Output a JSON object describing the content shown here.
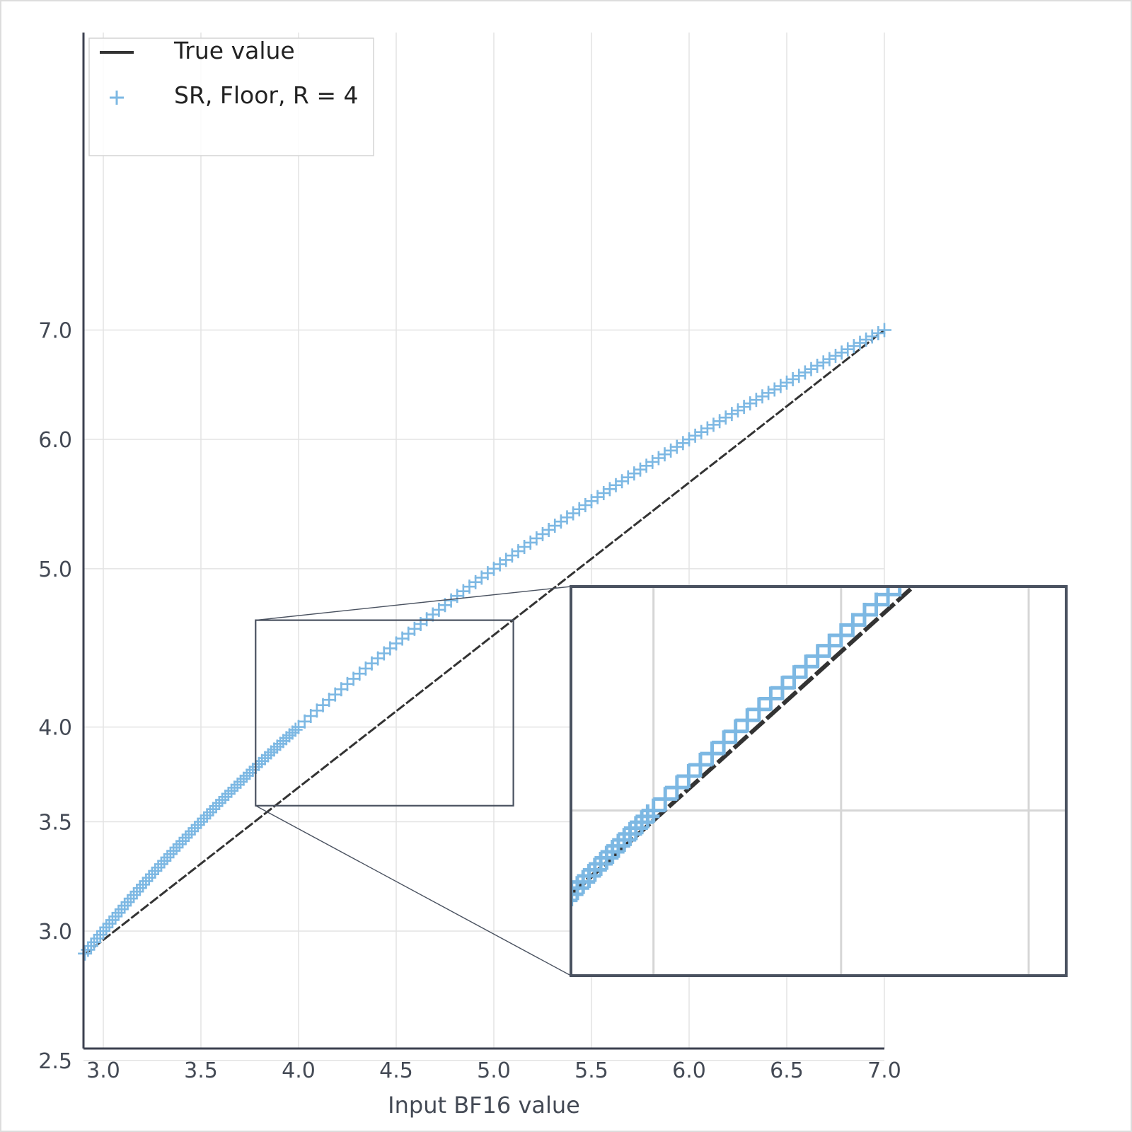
{
  "chart_data": {
    "type": "scatter",
    "title": "",
    "xlabel": "Input BF16 value",
    "ylabel": "",
    "xlim": [
      2.9,
      7.0
    ],
    "ylim": [
      2.4,
      7.6
    ],
    "xticks": [
      3.0,
      3.5,
      4.0,
      4.5,
      5.0,
      5.5,
      6.0,
      6.5,
      7.0
    ],
    "xtick_labels": [
      "3.0",
      "3.5",
      "4.0",
      "4.5",
      "5.0",
      "5.5",
      "6.0",
      "6.5",
      "7.0"
    ],
    "yticks": [
      2.5,
      3.0,
      3.5,
      4.0,
      5.0,
      6.0,
      7.0
    ],
    "ytick_labels": [
      "2.5",
      "3.0",
      "3.5",
      "4.0",
      "5.0",
      "6.0",
      "7.0"
    ],
    "y_scale": "log",
    "grid": true,
    "legend": {
      "position": "top-left",
      "entries": [
        {
          "label": "True value",
          "marker": "line",
          "color": "#333333"
        },
        {
          "label": "SR, Floor, R = 4",
          "marker": "plus",
          "color": "#7db8e3"
        }
      ]
    },
    "series": [
      {
        "name": "True value",
        "kind": "line",
        "color": "#333333",
        "x": [
          2.9,
          7.0
        ],
        "y": [
          2.9,
          7.0
        ]
      },
      {
        "name": "SR, Floor, R = 4",
        "kind": "scatter",
        "marker": "plus",
        "color": "#7db8e3",
        "segments": [
          {
            "x_start": 2.90625,
            "x_end": 4.0,
            "step": 0.015625
          },
          {
            "x_start": 4.03125,
            "x_end": 7.0,
            "step": 0.03125
          }
        ],
        "y_equals_x": true
      }
    ],
    "inset": {
      "xlim": [
        3.78,
        5.1
      ],
      "ylim": [
        3.58,
        4.65
      ],
      "grid": true,
      "border_color": "#4a5260"
    }
  }
}
